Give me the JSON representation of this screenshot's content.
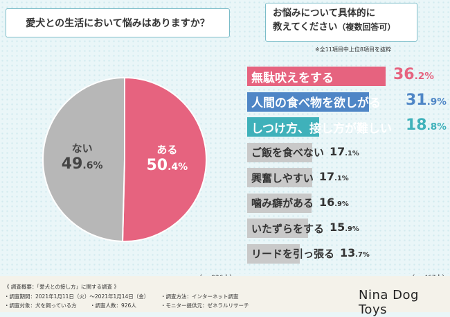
{
  "question1": "愛犬との生活において悩みはありますか？",
  "question2_line1": "お悩みについて具体的に",
  "question2_line2": "教えてください",
  "question2_suffix": "（複数回答可）",
  "note": "※全11項目中上位8項目を抜粋",
  "pie_n": "（n=926人）",
  "bar_n": "（n=467人）",
  "chart_data": [
    {
      "type": "pie",
      "slices": [
        {
          "label": "ある",
          "value": 50.4,
          "display_int": "50",
          "display_dec": ".4%",
          "color": "#e6637f"
        },
        {
          "label": "ない",
          "value": 49.6,
          "display_int": "49",
          "display_dec": ".6%",
          "color": "#b7b7b7"
        }
      ]
    },
    {
      "type": "bar",
      "orientation": "horizontal",
      "xlim": [
        0,
        36.2
      ],
      "items": [
        {
          "label": "無駄吠えをする",
          "value": 36.2,
          "int": "36",
          "dec": ".2%",
          "color": "#e6637f",
          "text_color": "#ffffff",
          "pct_color": "#e6637f"
        },
        {
          "label": "人間の食べ物を欲しがる",
          "value": 31.9,
          "int": "31",
          "dec": ".9%",
          "color": "#4f86c6",
          "text_color": "#ffffff",
          "pct_color": "#4f86c6"
        },
        {
          "label": "しつけ方、接し方が難しい",
          "value": 18.8,
          "int": "18",
          "dec": ".8%",
          "color": "#3fb1ba",
          "text_color": "#ffffff",
          "pct_color": "#3fb1ba"
        },
        {
          "label": "ご飯を食べない",
          "value": 17.1,
          "int": "17",
          "dec": ".1%",
          "color": "#c9c9c9",
          "text_color": "#333333",
          "pct_color": "#333333"
        },
        {
          "label": "興奮しやすい",
          "value": 17.1,
          "int": "17",
          "dec": ".1%",
          "color": "#c9c9c9",
          "text_color": "#333333",
          "pct_color": "#333333"
        },
        {
          "label": "噛み癖がある",
          "value": 16.9,
          "int": "16",
          "dec": ".9%",
          "color": "#c9c9c9",
          "text_color": "#333333",
          "pct_color": "#333333"
        },
        {
          "label": "いたずらをする",
          "value": 15.9,
          "int": "15",
          "dec": ".9%",
          "color": "#c9c9c9",
          "text_color": "#333333",
          "pct_color": "#333333"
        },
        {
          "label": "リードを引っ張る",
          "value": 13.7,
          "int": "13",
          "dec": ".7%",
          "color": "#c9c9c9",
          "text_color": "#333333",
          "pct_color": "#333333"
        }
      ]
    }
  ],
  "footer": {
    "heading": "《 調査概要：「愛犬との接し方」に関する調査 》",
    "period": "・調査期間：2021年1月11日（火）〜2021年1月14日（金）",
    "method": "・調査方法：インターネット調査",
    "target": "・調査対象：犬を飼っている方",
    "count": "・調査人数：926人",
    "provider": "・モニター提供元：ゼネラルリサーチ",
    "brand": "Nina Dog Toys"
  }
}
